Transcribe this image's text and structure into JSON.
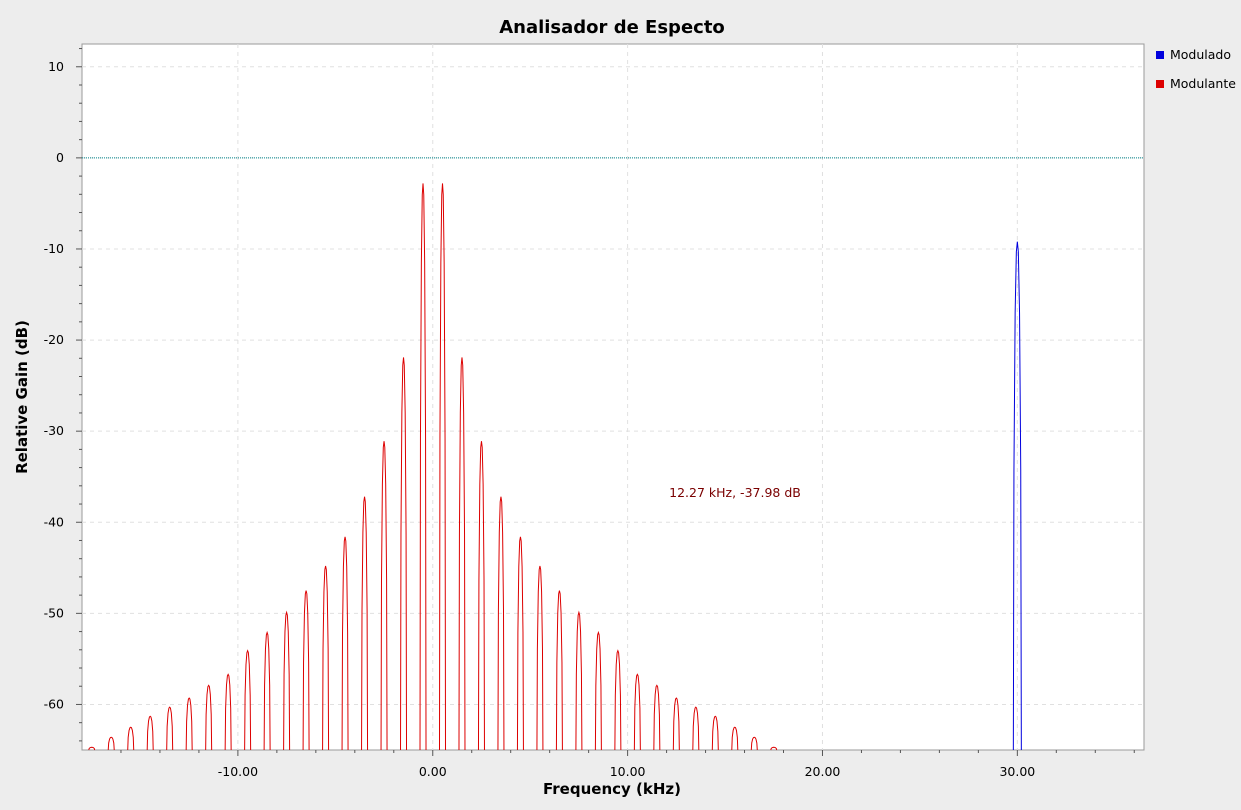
{
  "chart_data": {
    "type": "line",
    "title": "Analisador de Especto",
    "xlabel": "Frequency (kHz)",
    "ylabel": "Relative Gain (dB)",
    "xlim": [
      -18.0,
      36.5
    ],
    "ylim": [
      -65.0,
      12.5
    ],
    "x_ticks": [
      -10,
      0,
      10,
      20,
      30
    ],
    "x_tick_labels": [
      "-10.00",
      "0.00",
      "10.00",
      "20.00",
      "30.00"
    ],
    "y_ticks": [
      10,
      0,
      -10,
      -20,
      -30,
      -40,
      -50,
      -60
    ],
    "y_tick_labels": [
      "10",
      "0",
      "-10",
      "-20",
      "-30",
      "-40",
      "-50",
      "-60"
    ],
    "grid": true,
    "legend_position": "right",
    "reference_line": {
      "y": 0,
      "color": "#00848a"
    },
    "annotation": {
      "text": "12.27 kHz, -37.98 dB",
      "x": 12.27,
      "y": -37.98,
      "color": "#7a0000"
    },
    "series": [
      {
        "name": "Modulado",
        "color": "#0000dd",
        "peaks": [
          {
            "x": 30.0,
            "y": -9.2
          }
        ]
      },
      {
        "name": "Modulante",
        "color": "#dd0000",
        "peaks": [
          {
            "x": -17.5,
            "y": -64.7
          },
          {
            "x": -16.5,
            "y": -63.6
          },
          {
            "x": -15.5,
            "y": -62.5
          },
          {
            "x": -14.5,
            "y": -61.3
          },
          {
            "x": -13.5,
            "y": -60.3
          },
          {
            "x": -12.5,
            "y": -59.3
          },
          {
            "x": -11.5,
            "y": -57.9
          },
          {
            "x": -10.5,
            "y": -56.7
          },
          {
            "x": -9.5,
            "y": -54.1
          },
          {
            "x": -8.5,
            "y": -52.1
          },
          {
            "x": -7.5,
            "y": -49.9
          },
          {
            "x": -6.5,
            "y": -47.5
          },
          {
            "x": -5.5,
            "y": -44.8
          },
          {
            "x": -4.5,
            "y": -41.6
          },
          {
            "x": -3.5,
            "y": -37.2
          },
          {
            "x": -2.5,
            "y": -31.1
          },
          {
            "x": -1.5,
            "y": -21.9
          },
          {
            "x": -0.5,
            "y": -2.8
          },
          {
            "x": 0.5,
            "y": -2.8
          },
          {
            "x": 1.5,
            "y": -21.9
          },
          {
            "x": 2.5,
            "y": -31.1
          },
          {
            "x": 3.5,
            "y": -37.2
          },
          {
            "x": 4.5,
            "y": -41.6
          },
          {
            "x": 5.5,
            "y": -44.8
          },
          {
            "x": 6.5,
            "y": -47.5
          },
          {
            "x": 7.5,
            "y": -49.9
          },
          {
            "x": 8.5,
            "y": -52.1
          },
          {
            "x": 9.5,
            "y": -54.1
          },
          {
            "x": 10.5,
            "y": -56.7
          },
          {
            "x": 11.5,
            "y": -57.9
          },
          {
            "x": 12.5,
            "y": -59.3
          },
          {
            "x": 13.5,
            "y": -60.3
          },
          {
            "x": 14.5,
            "y": -61.3
          },
          {
            "x": 15.5,
            "y": -62.5
          },
          {
            "x": 16.5,
            "y": -63.6
          },
          {
            "x": 17.5,
            "y": -64.7
          }
        ]
      }
    ]
  }
}
